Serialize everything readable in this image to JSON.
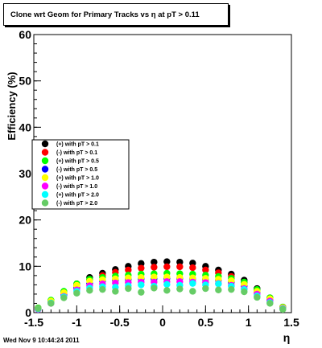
{
  "title": "Clone wrt Geom for Primary Tracks vs   η at pT > 0.11",
  "footer": "Wed Nov  9 10:44:24 2011",
  "chart_data": {
    "type": "scatter",
    "title": "Clone wrt Geom for Primary Tracks vs   η at pT > 0.11",
    "xlabel": "η",
    "ylabel": "Efficiency (%)",
    "xlim": [
      -1.5,
      1.5
    ],
    "ylim": [
      0,
      60
    ],
    "xticks": [
      "-1.5",
      "-1",
      "-0.5",
      "0",
      "0.5",
      "1",
      "1.5"
    ],
    "yticks": [
      "0",
      "10",
      "20",
      "30",
      "40",
      "50",
      "60"
    ],
    "grid": false,
    "legend_position": "left-center",
    "series": [
      {
        "name": "(+) with pT > 0.1",
        "color": "#000000",
        "x": [
          -1.45,
          -1.3,
          -1.15,
          -1.0,
          -0.85,
          -0.7,
          -0.55,
          -0.4,
          -0.25,
          -0.1,
          0.05,
          0.2,
          0.35,
          0.5,
          0.65,
          0.8,
          0.95,
          1.1,
          1.25,
          1.4
        ],
        "y": [
          1.0,
          2.6,
          4.5,
          6.2,
          7.6,
          8.5,
          9.3,
          10.0,
          10.6,
          10.9,
          11.0,
          10.9,
          10.7,
          10.0,
          9.2,
          8.3,
          7.0,
          5.2,
          3.2,
          1.2
        ]
      },
      {
        "name": "(-) with pT > 0.1",
        "color": "#ff0000",
        "x": [
          -1.45,
          -1.3,
          -1.15,
          -1.0,
          -0.85,
          -0.7,
          -0.55,
          -0.4,
          -0.25,
          -0.1,
          0.05,
          0.2,
          0.35,
          0.5,
          0.65,
          0.8,
          0.95,
          1.1,
          1.25,
          1.4
        ],
        "y": [
          0.9,
          2.4,
          4.2,
          5.8,
          7.1,
          8.0,
          8.7,
          9.2,
          9.6,
          9.8,
          9.9,
          9.9,
          9.7,
          9.2,
          8.6,
          7.8,
          6.5,
          4.8,
          3.0,
          1.1
        ]
      },
      {
        "name": "(+) with pT > 0.5",
        "color": "#00ff00",
        "x": [
          -1.45,
          -1.3,
          -1.15,
          -1.0,
          -0.85,
          -0.7,
          -0.55,
          -0.4,
          -0.25,
          -0.1,
          0.05,
          0.2,
          0.35,
          0.5,
          0.65,
          0.8,
          0.95,
          1.1,
          1.25,
          1.4
        ],
        "y": [
          1.0,
          2.7,
          4.6,
          6.2,
          7.2,
          7.6,
          7.9,
          8.1,
          8.3,
          8.4,
          8.5,
          8.4,
          8.3,
          8.1,
          7.8,
          7.4,
          6.6,
          5.0,
          3.2,
          1.2
        ]
      },
      {
        "name": "(-) with pT > 0.5",
        "color": "#0000ff",
        "x": [
          -1.45,
          -1.3,
          -1.15,
          -1.0,
          -0.85,
          -0.7,
          -0.55,
          -0.4,
          -0.25,
          -0.1,
          0.05,
          0.2,
          0.35,
          0.5,
          0.65,
          0.8,
          0.95,
          1.1,
          1.25,
          1.4
        ],
        "y": [
          0.8,
          2.2,
          3.8,
          5.3,
          6.3,
          6.8,
          7.0,
          7.2,
          7.3,
          7.3,
          7.4,
          7.4,
          7.3,
          7.2,
          7.0,
          6.6,
          5.8,
          4.4,
          2.8,
          1.0
        ]
      },
      {
        "name": "(+) with pT > 1.0",
        "color": "#ffff00",
        "x": [
          -1.45,
          -1.3,
          -1.15,
          -1.0,
          -0.85,
          -0.7,
          -0.55,
          -0.4,
          -0.25,
          -0.1,
          0.05,
          0.2,
          0.35,
          0.5,
          0.65,
          0.8,
          0.95,
          1.1,
          1.25,
          1.4
        ],
        "y": [
          0.9,
          2.5,
          4.3,
          5.9,
          6.8,
          7.1,
          7.3,
          7.5,
          7.6,
          7.7,
          7.7,
          7.6,
          7.5,
          7.4,
          7.2,
          6.9,
          6.1,
          4.6,
          3.0,
          1.1
        ]
      },
      {
        "name": "(-) with pT > 1.0",
        "color": "#ff00ff",
        "x": [
          -1.45,
          -1.3,
          -1.15,
          -1.0,
          -0.85,
          -0.7,
          -0.55,
          -0.4,
          -0.25,
          -0.1,
          0.05,
          0.2,
          0.35,
          0.5,
          0.65,
          0.8,
          0.95,
          1.1,
          1.25,
          1.4
        ],
        "y": [
          0.7,
          2.0,
          3.5,
          4.9,
          5.8,
          6.2,
          6.4,
          6.5,
          6.6,
          6.6,
          6.7,
          6.7,
          6.6,
          6.5,
          6.3,
          5.9,
          5.2,
          4.0,
          2.5,
          0.9
        ]
      },
      {
        "name": "(+) with pT > 2.0",
        "color": "#00ffff",
        "x": [
          -1.45,
          -1.3,
          -1.15,
          -1.0,
          -0.85,
          -0.7,
          -0.55,
          -0.4,
          -0.25,
          -0.1,
          0.05,
          0.2,
          0.35,
          0.5,
          0.65,
          0.8,
          0.95,
          1.1,
          1.25,
          1.4
        ],
        "y": [
          0.8,
          2.1,
          3.4,
          4.6,
          5.3,
          5.6,
          5.5,
          5.8,
          6.0,
          5.7,
          6.1,
          5.9,
          6.3,
          6.0,
          6.2,
          5.7,
          5.0,
          3.6,
          2.2,
          0.8
        ]
      },
      {
        "name": "(-) with pT > 2.0",
        "color": "#66cc66",
        "x": [
          -1.45,
          -1.3,
          -1.15,
          -1.0,
          -0.85,
          -0.7,
          -0.55,
          -0.4,
          -0.25,
          -0.1,
          0.05,
          0.2,
          0.35,
          0.5,
          0.65,
          0.8,
          0.95,
          1.1,
          1.25,
          1.4
        ],
        "y": [
          0.9,
          2.0,
          3.2,
          4.2,
          4.8,
          5.0,
          4.6,
          5.2,
          4.4,
          5.3,
          4.8,
          5.1,
          4.6,
          5.2,
          4.9,
          5.0,
          4.5,
          3.3,
          2.0,
          0.7
        ]
      }
    ]
  }
}
